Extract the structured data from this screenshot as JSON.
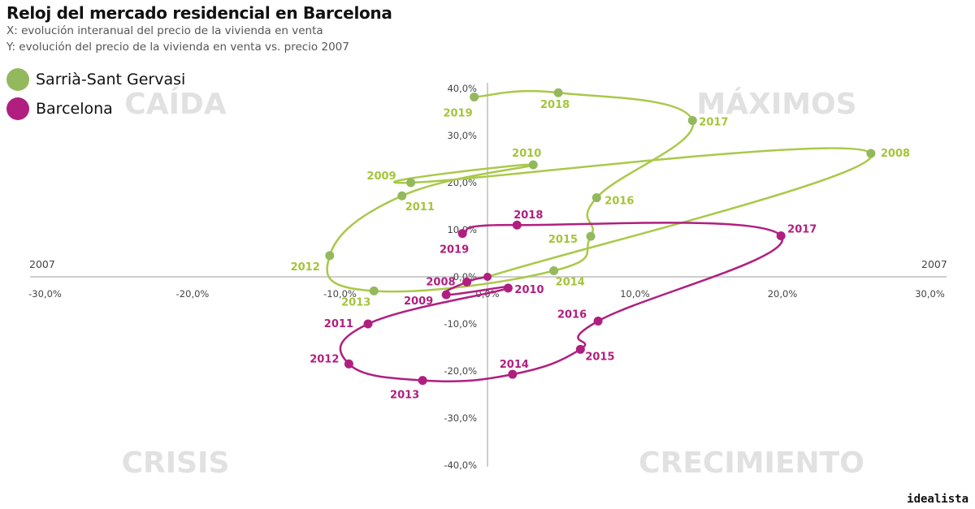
{
  "chart_data": {
    "type": "line",
    "title": "Reloj del mercado residencial en Barcelona",
    "xlabel": "X: evolución interanual del precio de la vivienda en venta",
    "ylabel": "Y: evolución del precio de la vivienda en venta vs. precio 2007",
    "xlim": [
      -30,
      30
    ],
    "ylim": [
      -40,
      40
    ],
    "x_ticks": [
      "-30,0%",
      "-20,0%",
      "-10,0%",
      "0,0%",
      "10,0%",
      "20,0%",
      "30,0%"
    ],
    "y_ticks": [
      "40,0%",
      "30,0%",
      "20,0%",
      "10,0%",
      "0,0%",
      "-10,0%",
      "-20,0%",
      "-30,0%",
      "-40,0%"
    ],
    "reference_labels": {
      "left": "2007",
      "right": "2007"
    },
    "quadrants": {
      "top_left": "CAÍDA",
      "top_right": "MÁXIMOS",
      "bottom_left": "CRISIS",
      "bottom_right": "CRECIMIENTO"
    },
    "legend": "top-left",
    "series": [
      {
        "name": "Sarrià-Sant Gervasi",
        "color": "#a9c94a",
        "marker_color": "#93b95c",
        "label_color": "#a3c539",
        "points": [
          {
            "year": "2008",
            "x": 26.0,
            "y": 26.2
          },
          {
            "year": "2009",
            "x": -5.2,
            "y": 20.0
          },
          {
            "year": "2010",
            "x": 3.1,
            "y": 23.8
          },
          {
            "year": "2011",
            "x": -5.8,
            "y": 17.2
          },
          {
            "year": "2012",
            "x": -10.7,
            "y": 4.5
          },
          {
            "year": "2013",
            "x": -7.7,
            "y": -3.0
          },
          {
            "year": "2014",
            "x": 4.5,
            "y": 1.3
          },
          {
            "year": "2015",
            "x": 7.0,
            "y": 8.6
          },
          {
            "year": "2016",
            "x": 7.4,
            "y": 16.8
          },
          {
            "year": "2017",
            "x": 13.9,
            "y": 33.2
          },
          {
            "year": "2018",
            "x": 4.8,
            "y": 39.1
          },
          {
            "year": "2019",
            "x": -0.9,
            "y": 38.2
          }
        ]
      },
      {
        "name": "Barcelona",
        "color": "#b01f7f",
        "marker_color": "#b01f7f",
        "label_color": "#b01f7f",
        "points": [
          {
            "year": "2008",
            "x": -1.4,
            "y": -1.1
          },
          {
            "year": "2009",
            "x": -2.8,
            "y": -3.8
          },
          {
            "year": "2010",
            "x": 1.4,
            "y": -2.4
          },
          {
            "year": "2011",
            "x": -8.1,
            "y": -10.0
          },
          {
            "year": "2012",
            "x": -9.4,
            "y": -18.5
          },
          {
            "year": "2013",
            "x": -4.4,
            "y": -22.0
          },
          {
            "year": "2014",
            "x": 1.7,
            "y": -20.7
          },
          {
            "year": "2015",
            "x": 6.3,
            "y": -15.4
          },
          {
            "year": "2016",
            "x": 7.5,
            "y": -9.4
          },
          {
            "year": "2017",
            "x": 19.9,
            "y": 8.7
          },
          {
            "year": "2018",
            "x": 2.0,
            "y": 11.0
          },
          {
            "year": "2019",
            "x": -1.7,
            "y": 9.2
          }
        ]
      }
    ]
  },
  "brand": "idealista"
}
